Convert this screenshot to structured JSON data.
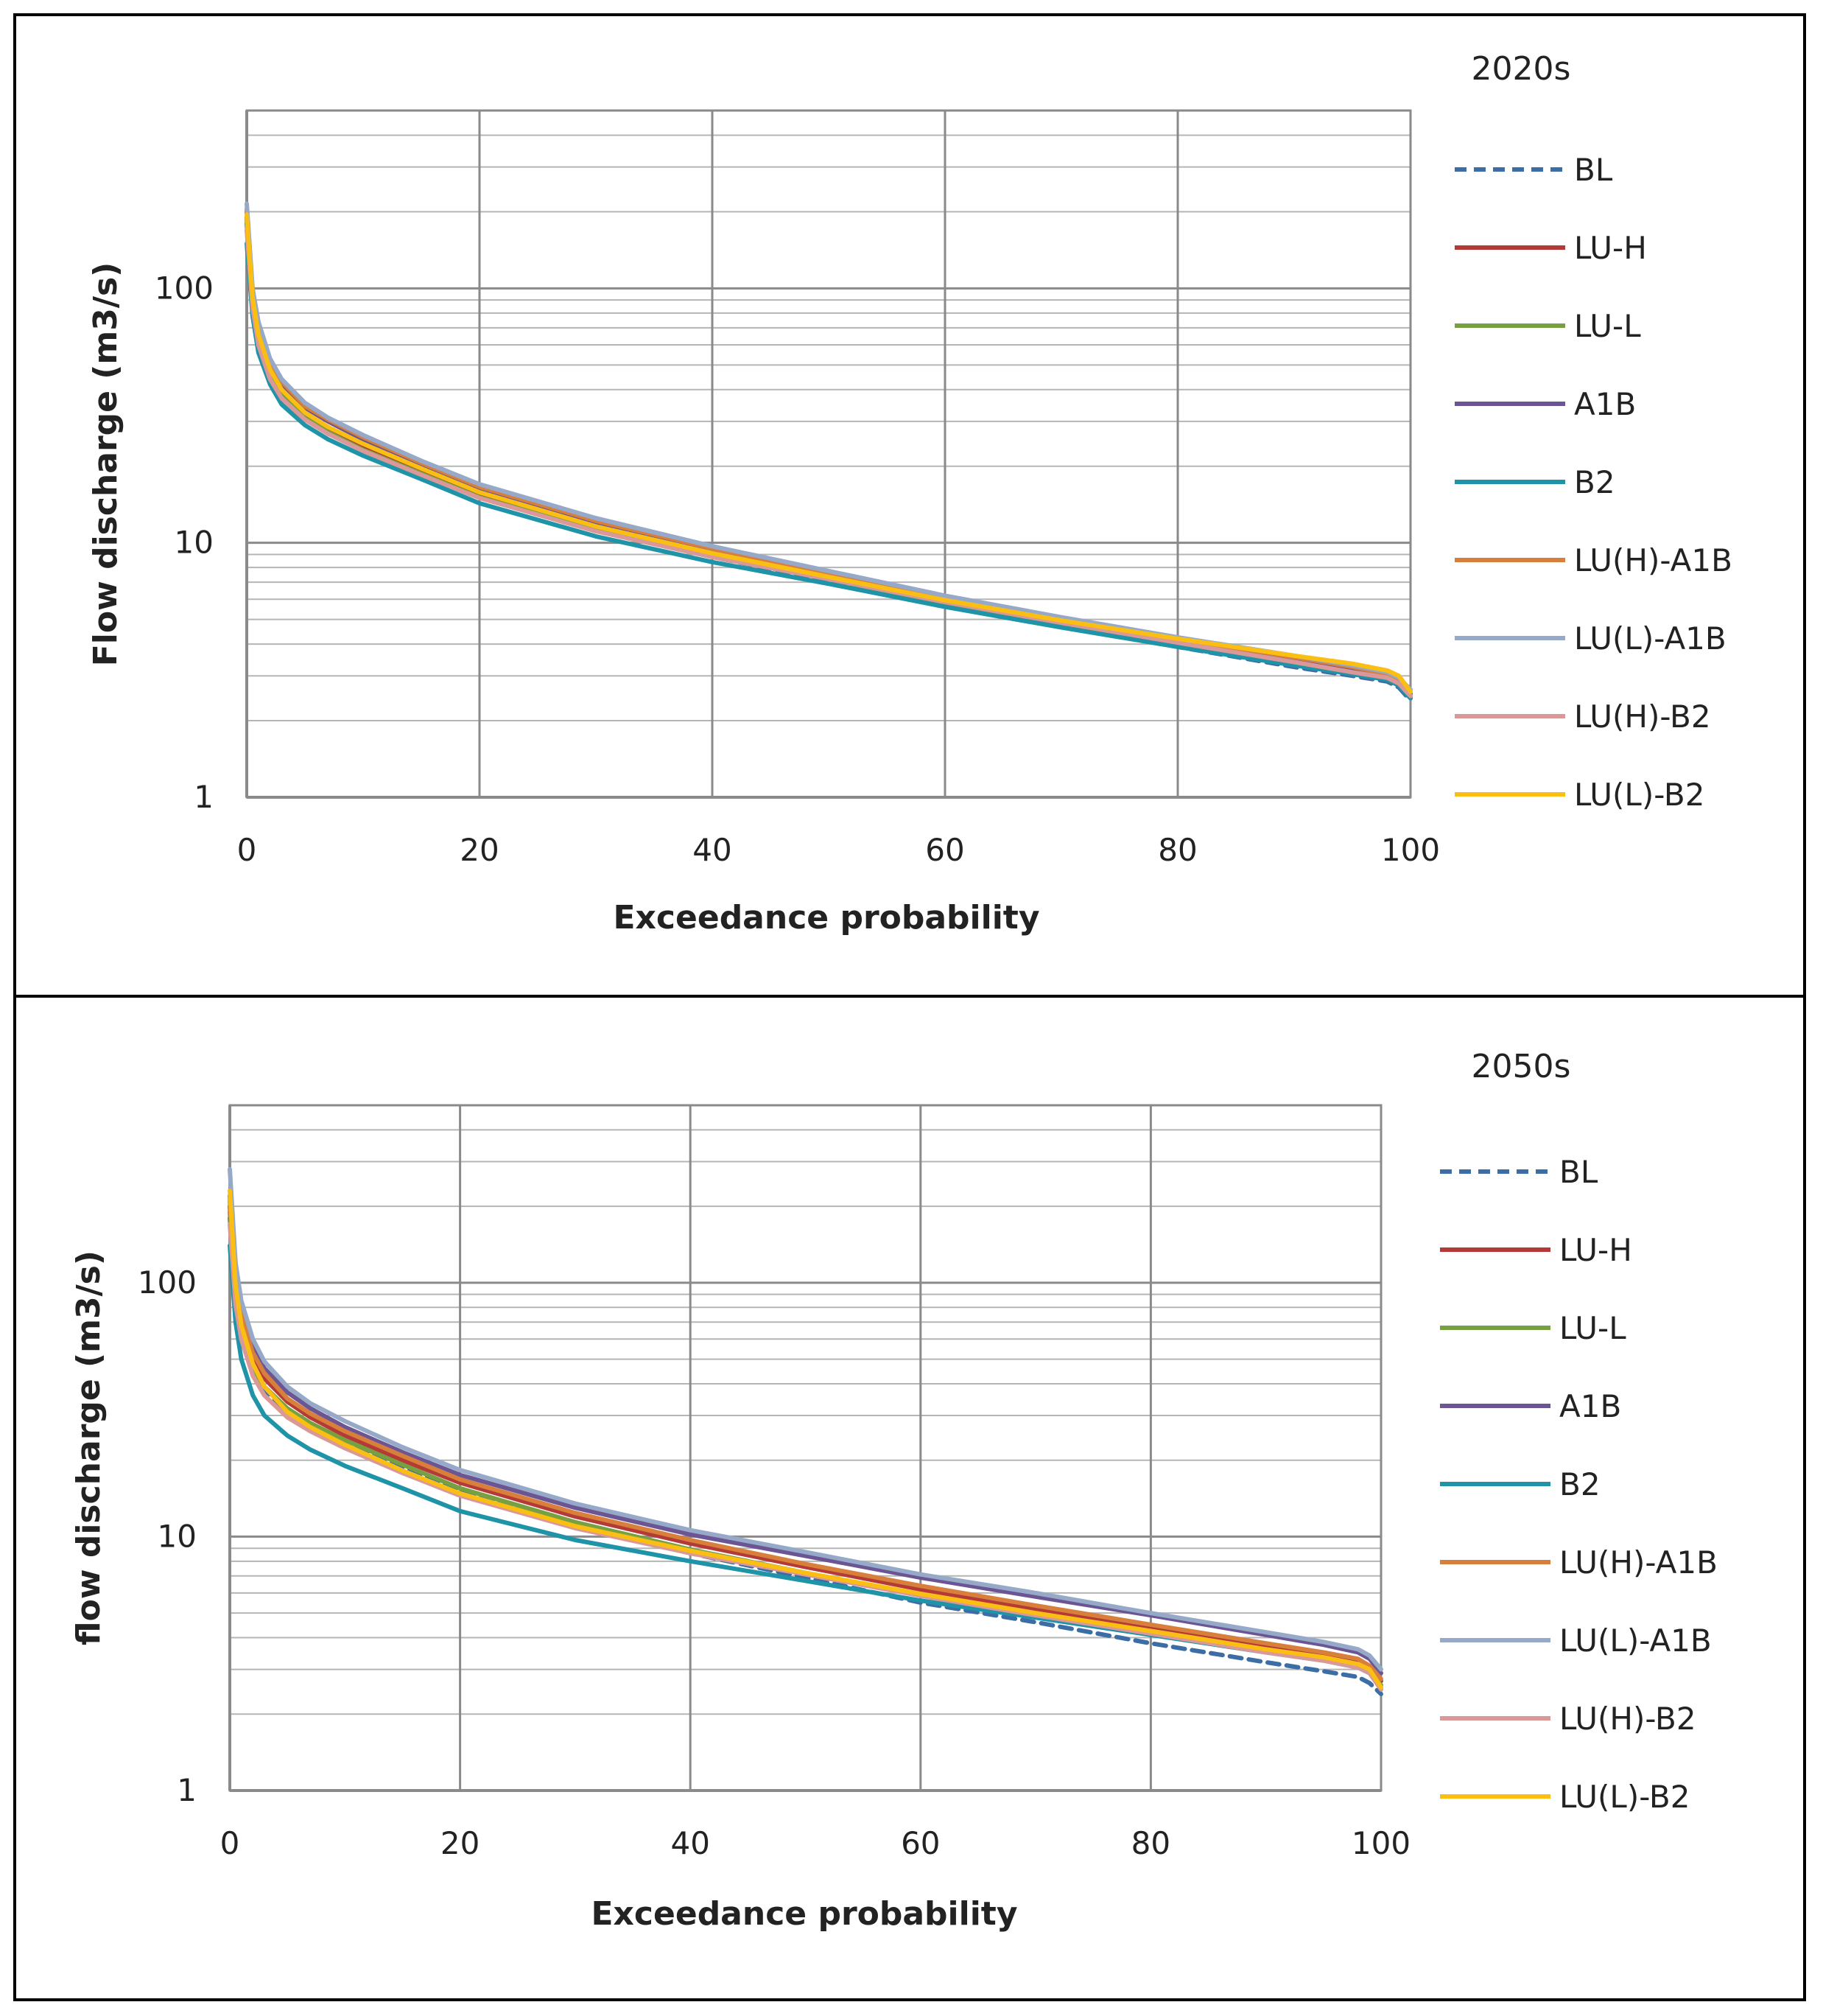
{
  "chart_data": [
    {
      "type": "line",
      "title": "2020s",
      "xlabel": "Exceedance probability",
      "ylabel": "Flow discharge (m3/s)",
      "xlim": [
        0,
        100
      ],
      "ylim": [
        1,
        500
      ],
      "yscale": "log",
      "xticks": [
        "0",
        "20",
        "40",
        "60",
        "80",
        "100"
      ],
      "yticks": [
        "1",
        "10",
        "100"
      ],
      "legend_position": "right",
      "grid": true,
      "x": [
        0,
        0.5,
        1,
        2,
        3,
        5,
        7,
        10,
        15,
        20,
        30,
        40,
        50,
        60,
        70,
        80,
        90,
        95,
        98,
        99,
        100
      ],
      "series": [
        {
          "name": "BL",
          "color": "#3c6ea5",
          "dashed": true,
          "values": [
            180,
            85,
            62,
            45,
            38,
            31,
            27.5,
            23.5,
            18.8,
            15.2,
            11.2,
            8.8,
            7.1,
            5.7,
            4.7,
            3.9,
            3.25,
            3.0,
            2.85,
            2.7,
            2.4
          ]
        },
        {
          "name": "LU-H",
          "color": "#b33a36",
          "dashed": false,
          "values": [
            190,
            88,
            64,
            46,
            39,
            32,
            28,
            24,
            19.2,
            15.5,
            11.5,
            9.0,
            7.3,
            5.9,
            4.85,
            4.05,
            3.4,
            3.1,
            2.95,
            2.8,
            2.5
          ]
        },
        {
          "name": "LU-L",
          "color": "#77a040",
          "dashed": false,
          "values": [
            185,
            86,
            62,
            45,
            38,
            31,
            27.2,
            23.2,
            18.7,
            15.1,
            11.2,
            8.8,
            7.2,
            5.8,
            4.8,
            4.0,
            3.35,
            3.05,
            2.9,
            2.75,
            2.45
          ]
        },
        {
          "name": "A1B",
          "color": "#6b5593",
          "dashed": false,
          "values": [
            200,
            95,
            70,
            50,
            42,
            34,
            30,
            25.5,
            20.3,
            16.4,
            12.0,
            9.4,
            7.5,
            6.0,
            4.95,
            4.15,
            3.5,
            3.2,
            3.0,
            2.85,
            2.55
          ]
        },
        {
          "name": "B2",
          "color": "#1f93a8",
          "dashed": false,
          "values": [
            150,
            78,
            56,
            42,
            35,
            29,
            25.5,
            22,
            17.8,
            14.3,
            10.6,
            8.4,
            6.9,
            5.6,
            4.65,
            3.9,
            3.3,
            3.05,
            2.9,
            2.75,
            2.45
          ]
        },
        {
          "name": "LU(H)-A1B",
          "color": "#d87f3c",
          "dashed": false,
          "values": [
            205,
            96,
            71,
            51,
            43,
            34.5,
            30.5,
            26,
            20.6,
            16.6,
            12.2,
            9.5,
            7.6,
            6.1,
            5.0,
            4.2,
            3.55,
            3.25,
            3.05,
            2.9,
            2.6
          ]
        },
        {
          "name": "LU(L)-A1B",
          "color": "#96a9c8",
          "dashed": false,
          "values": [
            215,
            100,
            74,
            53,
            44,
            35.5,
            31,
            26.5,
            21,
            17,
            12.5,
            9.7,
            7.75,
            6.2,
            5.1,
            4.25,
            3.6,
            3.3,
            3.1,
            2.95,
            2.65
          ]
        },
        {
          "name": "LU(H)-B2",
          "color": "#da9898",
          "dashed": false,
          "values": [
            170,
            84,
            60,
            44,
            37,
            30.5,
            26.8,
            23,
            18.5,
            15,
            11.1,
            8.8,
            7.2,
            5.85,
            4.85,
            4.05,
            3.4,
            3.1,
            2.95,
            2.8,
            2.5
          ]
        },
        {
          "name": "LU(L)-B2",
          "color": "#fbbf14",
          "dashed": false,
          "values": [
            195,
            92,
            66,
            48,
            40,
            32.5,
            28.5,
            24.5,
            19.6,
            15.8,
            11.6,
            9.1,
            7.35,
            5.95,
            4.95,
            4.2,
            3.6,
            3.35,
            3.15,
            3.0,
            2.6
          ]
        }
      ]
    },
    {
      "type": "line",
      "title": "2050s",
      "xlabel": "Exceedance probability",
      "ylabel": "flow discharge (m3/s)",
      "xlim": [
        0,
        100
      ],
      "ylim": [
        1,
        500
      ],
      "yscale": "log",
      "xticks": [
        "0",
        "20",
        "40",
        "60",
        "80",
        "100"
      ],
      "yticks": [
        "1",
        "10",
        "100"
      ],
      "legend_position": "right",
      "grid": true,
      "x": [
        0,
        0.5,
        1,
        2,
        3,
        5,
        7,
        10,
        15,
        20,
        30,
        40,
        50,
        60,
        70,
        80,
        90,
        95,
        98,
        99,
        100
      ],
      "series": [
        {
          "name": "BL",
          "color": "#3c6ea5",
          "dashed": true,
          "values": [
            180,
            85,
            62,
            45,
            38,
            31,
            27.5,
            23.5,
            18.8,
            15.2,
            11.2,
            8.6,
            6.9,
            5.5,
            4.6,
            3.8,
            3.2,
            2.95,
            2.8,
            2.65,
            2.4
          ]
        },
        {
          "name": "LU-H",
          "color": "#b33a36",
          "dashed": false,
          "values": [
            200,
            95,
            70,
            50,
            42,
            34,
            29.5,
            25,
            20,
            16.3,
            12,
            9.4,
            7.6,
            6.2,
            5.2,
            4.4,
            3.7,
            3.4,
            3.2,
            3.0,
            2.7
          ]
        },
        {
          "name": "LU-L",
          "color": "#77a040",
          "dashed": false,
          "values": [
            190,
            88,
            64,
            46,
            39,
            32,
            28,
            24,
            19.2,
            15.5,
            11.4,
            8.9,
            7.2,
            5.9,
            4.95,
            4.2,
            3.55,
            3.3,
            3.1,
            2.95,
            2.6
          ]
        },
        {
          "name": "A1B",
          "color": "#6b5593",
          "dashed": false,
          "values": [
            220,
            105,
            78,
            56,
            46,
            37,
            32,
            27,
            21.5,
            17.5,
            13,
            10.2,
            8.4,
            6.9,
            5.8,
            4.9,
            4.1,
            3.75,
            3.5,
            3.3,
            2.9
          ]
        },
        {
          "name": "B2",
          "color": "#1f93a8",
          "dashed": false,
          "values": [
            140,
            70,
            50,
            36,
            30,
            25,
            22,
            19,
            15.5,
            12.6,
            9.7,
            8.0,
            6.7,
            5.6,
            4.8,
            4.1,
            3.5,
            3.25,
            3.05,
            2.9,
            2.55
          ]
        },
        {
          "name": "LU(H)-A1B",
          "color": "#d87f3c",
          "dashed": false,
          "values": [
            210,
            100,
            74,
            53,
            44,
            35,
            30.5,
            26,
            20.8,
            16.8,
            12.4,
            9.7,
            7.8,
            6.4,
            5.35,
            4.5,
            3.8,
            3.5,
            3.3,
            3.1,
            2.75
          ]
        },
        {
          "name": "LU(L)-A1B",
          "color": "#96a9c8",
          "dashed": false,
          "values": [
            280,
            120,
            85,
            60,
            49,
            39,
            33.5,
            28.5,
            22.5,
            18.3,
            13.5,
            10.6,
            8.7,
            7.1,
            6.0,
            5.0,
            4.2,
            3.85,
            3.6,
            3.4,
            3.0
          ]
        },
        {
          "name": "LU(H)-B2",
          "color": "#da9898",
          "dashed": false,
          "values": [
            170,
            82,
            60,
            43,
            36,
            29.5,
            26,
            22.3,
            17.8,
            14.5,
            10.8,
            8.6,
            7.1,
            5.85,
            4.9,
            4.15,
            3.5,
            3.25,
            3.05,
            2.9,
            2.5
          ]
        },
        {
          "name": "LU(L)-B2",
          "color": "#fbbf14",
          "dashed": false,
          "values": [
            230,
            98,
            68,
            48,
            39,
            31,
            27,
            23,
            18.2,
            14.8,
            11,
            8.8,
            7.2,
            5.95,
            5.0,
            4.25,
            3.6,
            3.35,
            3.15,
            3.0,
            2.55
          ]
        }
      ]
    }
  ]
}
